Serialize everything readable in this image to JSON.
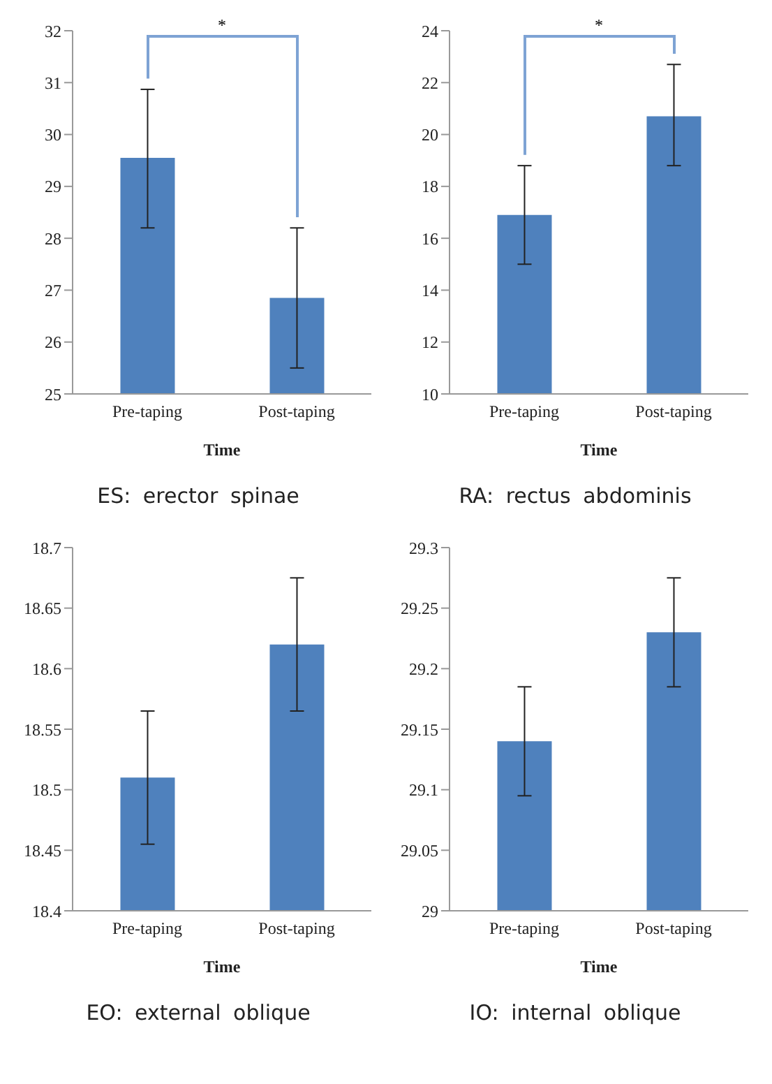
{
  "chart_data": [
    {
      "type": "bar",
      "title": "ES: erector spinae",
      "xlabel": "Time",
      "categories": [
        "Pre-taping",
        "Post-taping"
      ],
      "values": [
        29.55,
        26.85
      ],
      "errors": [
        [
          28.2,
          30.87
        ],
        [
          25.5,
          28.2
        ]
      ],
      "color": "#4f81bd",
      "ylim": [
        25,
        32
      ],
      "yticks": [
        25,
        26,
        27,
        28,
        29,
        30,
        31,
        32
      ],
      "grid": false,
      "annotations": [
        "*"
      ]
    },
    {
      "type": "bar",
      "title": "RA: rectus abdominis",
      "xlabel": "Time",
      "categories": [
        "Pre-taping",
        "Post-taping"
      ],
      "values": [
        16.9,
        20.7
      ],
      "errors": [
        [
          15.0,
          18.8
        ],
        [
          18.8,
          22.7
        ]
      ],
      "color": "#4f81bd",
      "ylim": [
        10,
        24
      ],
      "yticks": [
        10,
        12,
        14,
        16,
        18,
        20,
        22,
        24
      ],
      "grid": false,
      "annotations": [
        "*"
      ]
    },
    {
      "type": "bar",
      "title": "EO: external oblique",
      "xlabel": "Time",
      "categories": [
        "Pre-taping",
        "Post-taping"
      ],
      "values": [
        18.51,
        18.62
      ],
      "errors": [
        [
          18.455,
          18.565
        ],
        [
          18.565,
          18.675
        ]
      ],
      "color": "#4f81bd",
      "ylim": [
        18.4,
        18.7
      ],
      "yticks": [
        18.4,
        18.45,
        18.5,
        18.55,
        18.6,
        18.65,
        18.7
      ],
      "grid": false
    },
    {
      "type": "bar",
      "title": "IO: internal oblique",
      "xlabel": "Time",
      "categories": [
        "Pre-taping",
        "Post-taping"
      ],
      "values": [
        29.14,
        29.23
      ],
      "errors": [
        [
          29.095,
          29.185
        ],
        [
          29.185,
          29.275
        ]
      ],
      "color": "#4f81bd",
      "ylim": [
        29,
        29.3
      ],
      "yticks": [
        29,
        29.05,
        29.1,
        29.15,
        29.2,
        29.25,
        29.3
      ],
      "grid": false
    }
  ]
}
